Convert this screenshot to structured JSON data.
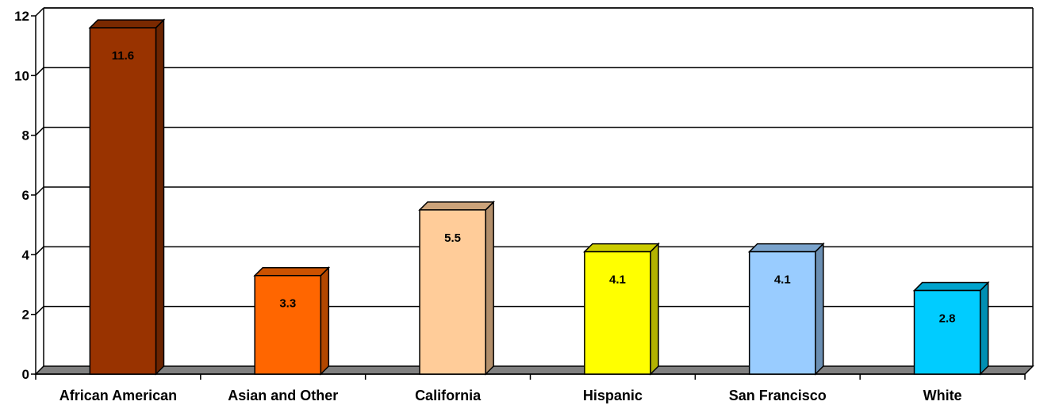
{
  "chart_data": {
    "type": "bar",
    "title": "",
    "xlabel": "",
    "ylabel": "",
    "ylim": [
      0,
      12
    ],
    "yticks": [
      "0",
      "2",
      "4",
      "6",
      "8",
      "10",
      "12"
    ],
    "grid": true,
    "legend": "none",
    "categories": [
      "African American",
      "Asian and Other",
      "California",
      "Hispanic",
      "San Francisco",
      "White"
    ],
    "values": [
      11.6,
      3.3,
      5.5,
      4.1,
      4.1,
      2.8
    ],
    "data_labels": [
      "11.6",
      "3.3",
      "5.5",
      "4.1",
      "4.1",
      "2.8"
    ],
    "bar_colors": [
      "#993300",
      "#ff6600",
      "#ffcc99",
      "#ffff00",
      "#99ccff",
      "#00ccff"
    ]
  }
}
